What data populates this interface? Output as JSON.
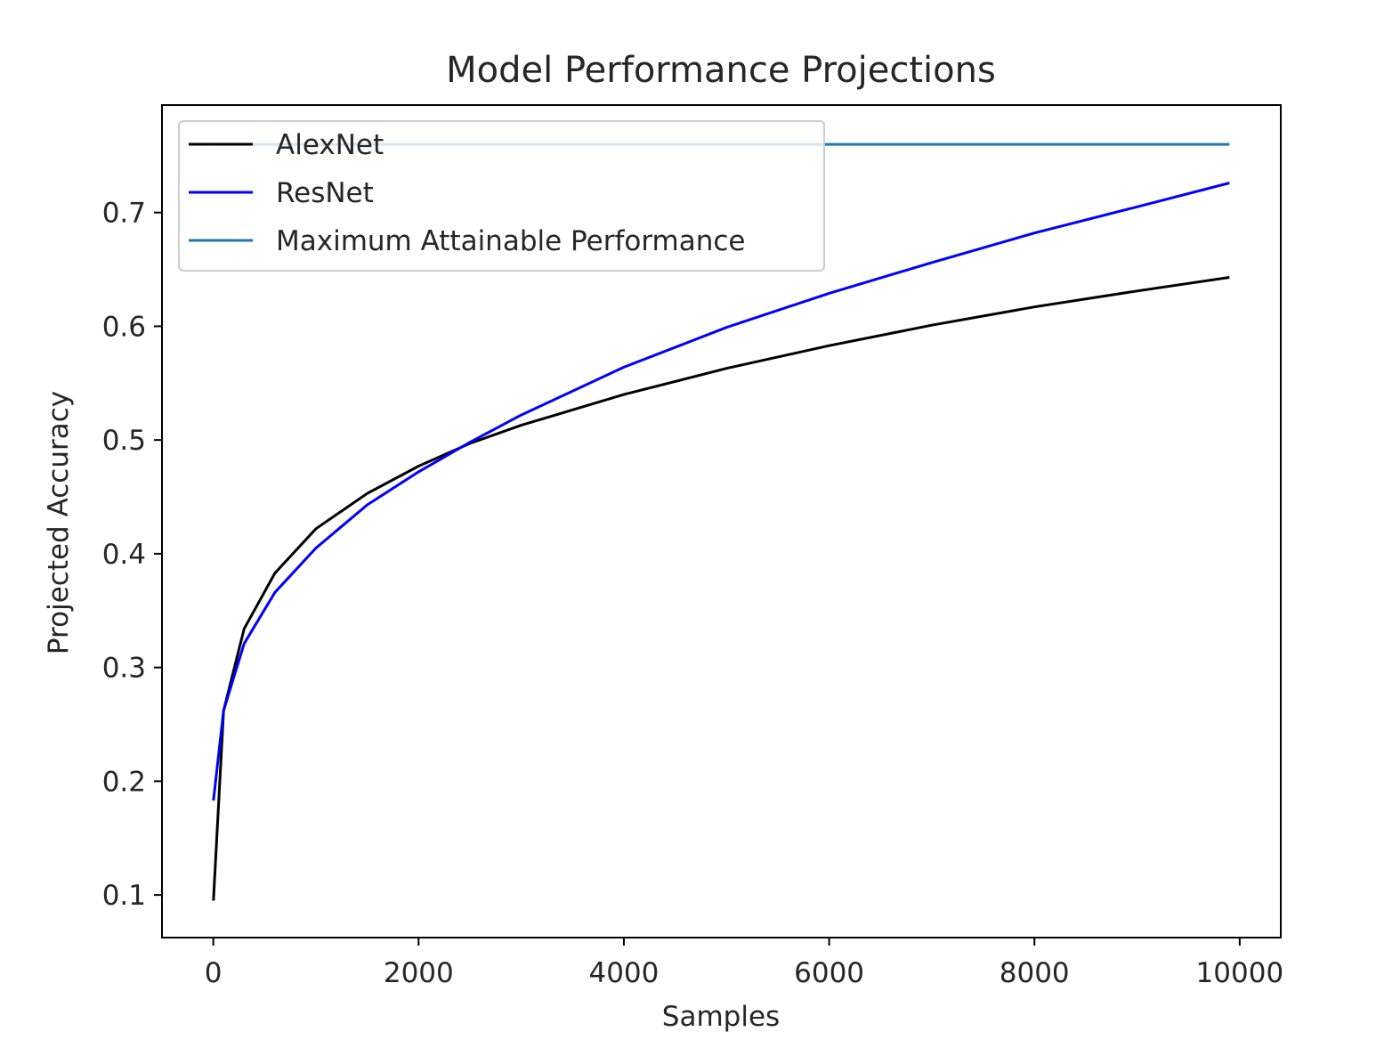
{
  "chart_data": {
    "type": "line",
    "title": "Model Performance Projections",
    "xlabel": "Samples",
    "ylabel": "Projected Accuracy",
    "xlim": [
      -500,
      10400
    ],
    "ylim": [
      0.0625,
      0.7945
    ],
    "xticks": [
      0,
      2000,
      4000,
      6000,
      8000,
      10000
    ],
    "xtick_labels": [
      "0",
      "2000",
      "4000",
      "6000",
      "8000",
      "10000"
    ],
    "yticks": [
      0.1,
      0.2,
      0.3,
      0.4,
      0.5,
      0.6,
      0.7
    ],
    "ytick_labels": [
      "0.1",
      "0.2",
      "0.3",
      "0.4",
      "0.5",
      "0.6",
      "0.7"
    ],
    "grid": false,
    "legend_position": "upper-left",
    "x": [
      1,
      100,
      300,
      600,
      1000,
      1500,
      2000,
      2500,
      3000,
      4000,
      5000,
      6000,
      7000,
      8000,
      9000,
      9900
    ],
    "series": [
      {
        "name": "AlexNet",
        "color": "#000000",
        "values": [
          0.095,
          0.262,
          0.334,
          0.383,
          0.422,
          0.453,
          0.477,
          0.497,
          0.513,
          0.54,
          0.563,
          0.583,
          0.601,
          0.617,
          0.631,
          0.643
        ]
      },
      {
        "name": "ResNet",
        "color": "#0000ff",
        "values": [
          0.183,
          0.262,
          0.321,
          0.366,
          0.405,
          0.443,
          0.472,
          0.498,
          0.522,
          0.564,
          0.599,
          0.629,
          0.656,
          0.682,
          0.705,
          0.726
        ]
      },
      {
        "name": "Maximum Attainable Performance",
        "color": "#1f77b4",
        "values": [
          0.76,
          0.76,
          0.76,
          0.76,
          0.76,
          0.76,
          0.76,
          0.76,
          0.76,
          0.76,
          0.76,
          0.76,
          0.76,
          0.76,
          0.76,
          0.76
        ]
      }
    ]
  }
}
